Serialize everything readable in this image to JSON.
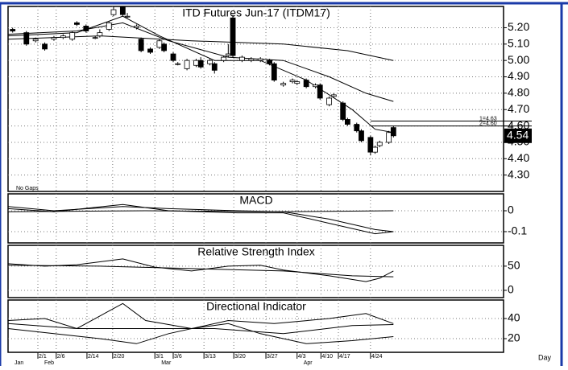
{
  "chart_data": [
    {
      "type": "candlestick",
      "title": "ITD Futures Jun-17 (ITDM17)",
      "note": "No Gaps",
      "x": [
        1,
        4,
        6,
        8,
        10,
        12,
        14,
        15,
        17,
        19,
        20,
        22,
        23,
        25,
        26,
        28,
        29,
        31,
        33,
        34,
        36,
        37,
        39,
        41,
        42,
        44,
        45,
        47,
        48,
        49,
        51,
        53,
        55,
        57,
        58,
        60,
        62,
        63,
        65,
        67,
        68,
        70,
        71,
        73,
        74,
        76,
        77,
        79,
        80,
        81,
        83,
        84
      ],
      "open": [
        5.19,
        5.17,
        5.12,
        5.1,
        5.13,
        5.14,
        5.13,
        5.23,
        5.21,
        5.14,
        5.15,
        5.19,
        5.28,
        5.33,
        5.27,
        5.2,
        5.13,
        5.07,
        5.08,
        5.1,
        5.04,
        4.98,
        4.95,
        4.97,
        5.0,
        4.98,
        4.98,
        5.0,
        5.03,
        5.26,
        5.0,
        5.0,
        5.0,
        5.0,
        4.98,
        4.85,
        4.87,
        4.86,
        4.88,
        4.84,
        4.85,
        4.73,
        4.78,
        4.74,
        4.64,
        4.61,
        4.57,
        4.53,
        4.44,
        4.48,
        4.5,
        4.59
      ],
      "high": [
        5.2,
        5.18,
        5.14,
        5.11,
        5.15,
        5.16,
        5.18,
        5.24,
        5.22,
        5.15,
        5.19,
        5.24,
        5.33,
        5.33,
        5.29,
        5.22,
        5.14,
        5.08,
        5.13,
        5.11,
        5.05,
        4.99,
        5.01,
        5.01,
        5.02,
        5.01,
        4.99,
        5.03,
        5.1,
        5.28,
        5.03,
        5.02,
        5.02,
        5.01,
        4.99,
        4.87,
        4.89,
        4.88,
        4.89,
        4.86,
        4.86,
        4.78,
        4.8,
        4.75,
        4.65,
        4.62,
        4.58,
        4.54,
        4.48,
        4.51,
        4.57,
        4.6
      ],
      "low": [
        5.17,
        5.09,
        5.11,
        5.06,
        5.12,
        5.13,
        5.12,
        5.21,
        5.17,
        5.13,
        5.14,
        5.18,
        5.27,
        5.27,
        5.26,
        5.19,
        5.05,
        5.04,
        5.07,
        5.05,
        4.99,
        4.97,
        4.94,
        4.96,
        4.95,
        4.97,
        4.92,
        4.99,
        5.02,
        5.02,
        4.99,
        4.99,
        4.99,
        4.97,
        4.87,
        4.84,
        4.86,
        4.85,
        4.83,
        4.83,
        4.76,
        4.72,
        4.77,
        4.63,
        4.6,
        4.56,
        4.5,
        4.42,
        4.43,
        4.47,
        4.49,
        4.53
      ],
      "close": [
        5.18,
        5.1,
        5.13,
        5.07,
        5.14,
        5.15,
        5.17,
        5.22,
        5.18,
        5.14,
        5.17,
        5.23,
        5.31,
        5.28,
        5.27,
        5.21,
        5.06,
        5.05,
        5.12,
        5.06,
        5.0,
        4.98,
        5.0,
        5.0,
        4.96,
        5.0,
        4.94,
        5.02,
        5.04,
        5.03,
        5.02,
        5.01,
        5.01,
        4.98,
        4.88,
        4.86,
        4.88,
        4.87,
        4.84,
        4.85,
        4.77,
        4.77,
        4.79,
        4.64,
        4.61,
        4.57,
        4.51,
        4.44,
        4.47,
        4.5,
        4.56,
        4.54
      ],
      "up_color": "#ffffff",
      "down_color": "#000000",
      "series": [
        {
          "color": "#000000",
          "x": [
            0,
            20,
            40,
            60,
            74,
            84
          ],
          "values": [
            5.13,
            5.15,
            5.12,
            5.1,
            5.06,
            5.0
          ]
        },
        {
          "color": "#000000",
          "x": [
            0,
            15,
            25,
            35,
            48,
            60,
            70,
            78,
            84
          ],
          "values": [
            5.16,
            5.18,
            5.23,
            5.12,
            5.02,
            5.0,
            4.9,
            4.8,
            4.75
          ]
        },
        {
          "color": "#000000",
          "x": [
            0,
            15,
            25,
            33,
            45,
            55,
            65,
            75,
            80,
            84
          ],
          "values": [
            5.15,
            5.17,
            5.27,
            5.15,
            5.0,
            5.0,
            4.88,
            4.7,
            4.58,
            4.56
          ]
        }
      ],
      "annotations": [
        {
          "label": "1=4.63",
          "value": 4.63
        },
        {
          "label": "2=4.60",
          "value": 4.6
        }
      ],
      "last_price": 4.54,
      "ylim": [
        4.2,
        5.33
      ],
      "yticks": [
        {
          "value": 5.2,
          "label": "5.20"
        },
        {
          "value": 5.1,
          "label": "5.10"
        },
        {
          "value": 5.0,
          "label": "5.00"
        },
        {
          "value": 4.9,
          "label": "4.90"
        },
        {
          "value": 4.8,
          "label": "4.80"
        },
        {
          "value": 4.7,
          "label": "4.70"
        },
        {
          "value": 4.6,
          "label": "4.60"
        },
        {
          "value": 4.5,
          "label": "4.50"
        },
        {
          "value": 4.4,
          "label": "4.40"
        },
        {
          "value": 4.3,
          "label": "4.30"
        }
      ],
      "grid": true
    },
    {
      "type": "line",
      "title": "MACD",
      "series": [
        {
          "color": "#000000",
          "x": [
            0,
            10,
            25,
            35,
            50,
            60,
            70,
            80,
            84
          ],
          "values": [
            0.01,
            -0.005,
            0.03,
            0.0,
            -0.01,
            -0.01,
            -0.06,
            -0.11,
            -0.1
          ]
        },
        {
          "color": "#000000",
          "x": [
            0,
            10,
            25,
            35,
            50,
            60,
            70,
            80,
            84
          ],
          "values": [
            0.02,
            0.0,
            0.02,
            0.01,
            0.0,
            -0.005,
            -0.04,
            -0.09,
            -0.1
          ]
        },
        {
          "color": "#000000",
          "x": [
            0,
            30,
            60,
            84
          ],
          "values": [
            -0.005,
            0.0,
            -0.005,
            0.0
          ]
        }
      ],
      "ylim": [
        -0.154,
        0.081
      ],
      "yticks": [
        0,
        -0.1
      ],
      "grid": true
    },
    {
      "type": "line",
      "title": "Relative Strength Index",
      "series": [
        {
          "color": "#000000",
          "x": [
            0,
            8,
            15,
            25,
            32,
            40,
            48,
            55,
            60,
            70,
            78,
            81,
            84
          ],
          "values": [
            55,
            50,
            53,
            65,
            48,
            40,
            50,
            52,
            42,
            30,
            18,
            25,
            40
          ]
        },
        {
          "color": "#000000",
          "x": [
            0,
            20,
            40,
            60,
            75,
            84
          ],
          "values": [
            52,
            50,
            45,
            40,
            30,
            28
          ]
        }
      ],
      "ylim": [
        -15,
        93
      ],
      "yticks": [
        50,
        0
      ],
      "grid": true
    },
    {
      "type": "line",
      "title": "Directional Indicator",
      "series": [
        {
          "color": "#000000",
          "x": [
            0,
            8,
            15,
            25,
            30,
            40,
            48,
            55,
            65,
            75,
            84
          ],
          "values": [
            38,
            40,
            30,
            55,
            38,
            30,
            35,
            25,
            15,
            18,
            22
          ]
        },
        {
          "color": "#000000",
          "x": [
            0,
            10,
            20,
            28,
            35,
            48,
            58,
            70,
            78,
            84
          ],
          "values": [
            30,
            25,
            20,
            15,
            25,
            38,
            35,
            40,
            45,
            35
          ]
        },
        {
          "color": "#000000",
          "x": [
            0,
            15,
            30,
            45,
            60,
            75,
            84
          ],
          "values": [
            35,
            30,
            30,
            30,
            25,
            33,
            34
          ]
        }
      ],
      "ylim": [
        6.4,
        58.4
      ],
      "yticks": [
        40,
        20
      ],
      "grid": true,
      "xlim": [
        0,
        108
      ],
      "xticks": [
        {
          "value": 6.5,
          "label": "2/1"
        },
        {
          "value": 10.5,
          "label": "2/6"
        },
        {
          "value": 17.2,
          "label": "2/14"
        },
        {
          "value": 22.8,
          "label": "2/20"
        },
        {
          "value": 32,
          "label": "3/1"
        },
        {
          "value": 36,
          "label": "3/6"
        },
        {
          "value": 42.7,
          "label": "3/13"
        },
        {
          "value": 49.2,
          "label": "3/20"
        },
        {
          "value": 56.2,
          "label": "3/27"
        },
        {
          "value": 63,
          "label": "4/3"
        },
        {
          "value": 68.2,
          "label": "4/10"
        },
        {
          "value": 72,
          "label": "4/17"
        },
        {
          "value": 79,
          "label": "4/24"
        }
      ],
      "month_ticks": [
        {
          "value": 0,
          "label": "Jan"
        },
        {
          "value": 6.5,
          "label": "Feb"
        },
        {
          "value": 32,
          "label": "Mar"
        },
        {
          "value": 63,
          "label": "Apr"
        }
      ],
      "x_label": "Day"
    }
  ]
}
